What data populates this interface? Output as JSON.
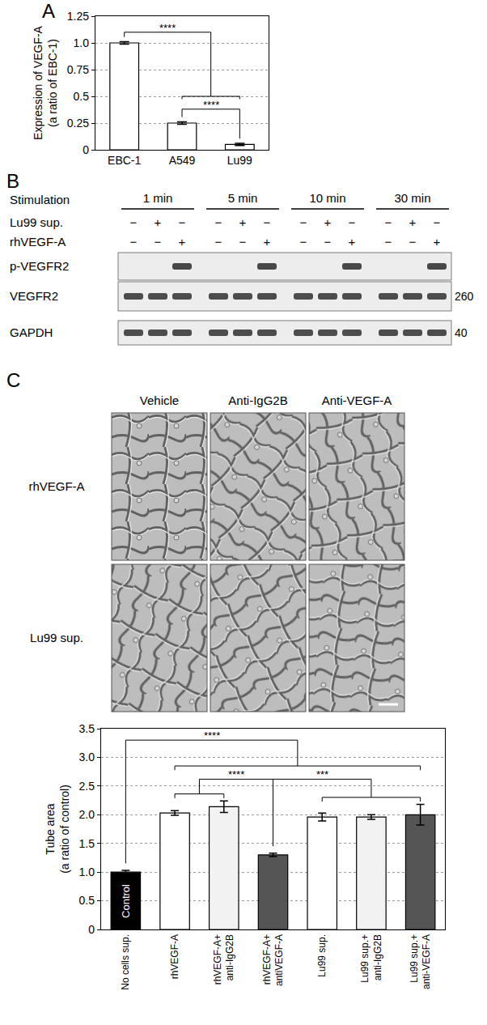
{
  "chart_data": [
    {
      "panel": "A",
      "type": "bar",
      "categories": [
        "EBC-1",
        "A549",
        "Lu99"
      ],
      "values": [
        1.0,
        0.25,
        0.05
      ],
      "errors": [
        0.012,
        0.012,
        0.01
      ],
      "color": "#ffffff",
      "ylabel": "Expression of VEGF-A\n(a ratio of EBC-1)",
      "ylim": [
        0,
        1.25
      ],
      "yticks": [
        0,
        0.25,
        0.5,
        0.75,
        {
          "value": 1,
          "label": "1.0"
        },
        1.25
      ],
      "grid": true,
      "significance": [
        {
          "from": [
            "EBC-1"
          ],
          "to": [
            "A549",
            "Lu99"
          ],
          "label": "****"
        },
        {
          "from": [
            "A549"
          ],
          "to": [
            "Lu99"
          ],
          "label": "****"
        }
      ]
    },
    {
      "type": "bar",
      "categories": [
        "No cells sup.",
        "rhVEGF-A",
        "rhVEGF-A+\nanti-IgG2B",
        "rhVEGF-A+\nantiVEGF-A",
        "Lu99 sup.",
        "Lu99 sup.+\nanti-IgG2B",
        "Lu99 sup.+\nanti-VEGF-A"
      ],
      "values": [
        1.0,
        2.03,
        2.14,
        1.3,
        1.96,
        1.96,
        2.0
      ],
      "errors": [
        0.03,
        0.04,
        0.1,
        0.03,
        0.07,
        0.04,
        0.18
      ],
      "colors": [
        "#000000",
        "#ffffff",
        "#f2f2f2",
        "#555555",
        "#ffffff",
        "#f2f2f2",
        "#555555"
      ],
      "ylabel": "Tube area\n(a ratio of control)",
      "ylim": [
        0,
        3.5
      ],
      "yticks": [
        0,
        0.5,
        {
          "value": 1,
          "label": "1.0"
        },
        1.5,
        {
          "value": 2,
          "label": "2.0"
        },
        2.5,
        {
          "value": 3,
          "label": "3.0"
        },
        3.5
      ],
      "grid": true,
      "annotations": [
        {
          "text": "Control",
          "category": "No cells sup."
        }
      ],
      "significance": [
        {
          "from": [
            "No cells sup."
          ],
          "to": [
            "rhVEGF-A",
            "rhVEGF-A+\nanti-IgG2B",
            "rhVEGF-A+\nantiVEGF-A",
            "Lu99 sup.",
            "Lu99 sup.+\nanti-IgG2B",
            "Lu99 sup.+\nanti-VEGF-A"
          ],
          "label": "****"
        },
        {
          "from": [
            "rhVEGF-A",
            "rhVEGF-A+\nanti-IgG2B"
          ],
          "to": [
            "rhVEGF-A+\nantiVEGF-A"
          ],
          "label": "****"
        },
        {
          "from": [
            "rhVEGF-A+\nantiVEGF-A"
          ],
          "to": [
            "Lu99 sup.",
            "Lu99 sup.+\nanti-IgG2B",
            "Lu99 sup.+\nanti-VEGF-A"
          ],
          "label": "***"
        }
      ]
    }
  ],
  "blot": {
    "panel": "B",
    "header": "Stimulation",
    "times": [
      "1 min",
      "5 min",
      "10 min",
      "30 min"
    ],
    "treatments": [
      {
        "label": "Lu99 sup.",
        "signs": [
          "−",
          "+",
          "−"
        ]
      },
      {
        "label": "rhVEGF-A",
        "signs": [
          "−",
          "−",
          "+"
        ]
      }
    ],
    "bands": [
      "p-VEGFR2",
      "VEGFR2",
      "GAPDH"
    ],
    "markers": [
      {
        "band": "VEGFR2",
        "label": "260"
      },
      {
        "band": "GAPDH",
        "label": "40"
      }
    ]
  },
  "micrographs": {
    "panel": "C",
    "columns": [
      "Vehicle",
      "Anti-IgG2B",
      "Anti-VEGF-A"
    ],
    "rows": [
      "rhVEGF-A",
      "Lu99 sup."
    ]
  }
}
